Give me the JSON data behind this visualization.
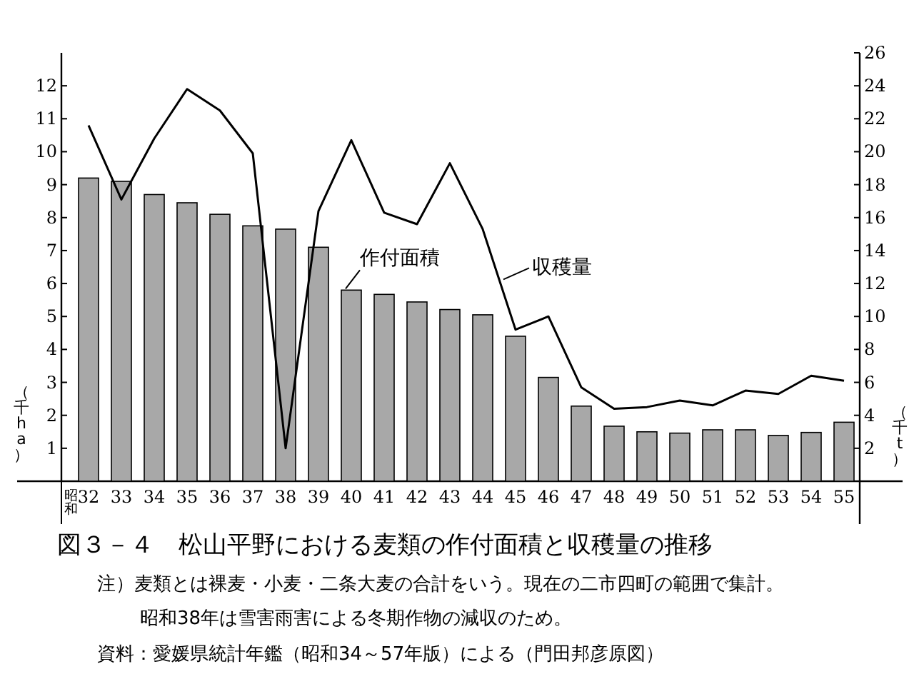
{
  "chart_data": {
    "type": "bar",
    "title": "図３－４　松山平野における麦類の作付面積と収穫量の推移",
    "xlabel": "昭和",
    "ylabel": "（千ha）",
    "y2label": "（千t）",
    "categories": [
      "32",
      "33",
      "34",
      "35",
      "36",
      "37",
      "38",
      "39",
      "40",
      "41",
      "42",
      "43",
      "44",
      "45",
      "46",
      "47",
      "48",
      "49",
      "50",
      "51",
      "52",
      "53",
      "54",
      "55"
    ],
    "series": [
      {
        "name": "作付面積",
        "color": "#a8a8a8",
        "values": [
          9.2,
          9.1,
          8.7,
          8.45,
          8.1,
          7.75,
          7.65,
          7.1,
          5.8,
          5.67,
          5.44,
          5.21,
          5.05,
          4.4,
          3.15,
          2.28,
          1.67,
          1.5,
          1.46,
          1.56,
          1.56,
          1.39,
          1.48,
          1.79
        ]
      },
      {
        "name": "収穫量",
        "type": "line",
        "axis": "y2",
        "color": "#000000",
        "values": [
          21.6,
          17.1,
          20.8,
          23.8,
          22.5,
          19.9,
          2.0,
          16.4,
          20.7,
          16.3,
          15.6,
          19.3,
          15.3,
          9.2,
          10.0,
          5.7,
          4.4,
          4.5,
          4.9,
          4.6,
          5.5,
          5.3,
          6.4,
          6.1
        ]
      }
    ],
    "ylim": [
      0,
      13
    ],
    "yticks": [
      1,
      2,
      3,
      4,
      5,
      6,
      7,
      8,
      9,
      10,
      11,
      12
    ],
    "y2lim": [
      0,
      26
    ],
    "y2ticks": [
      2,
      4,
      6,
      8,
      10,
      12,
      14,
      16,
      18,
      20,
      22,
      24,
      26
    ],
    "marker": "none",
    "line_style": "solid",
    "grid": false,
    "annotations": [
      "注）麦類とは裸麦・小麦・二条大麦の合計をいう。現在の二市四町の範囲で集計。",
      "昭和38年は雪害雨害による冬期作物の減収のため。",
      "資料：愛媛県統計年鑑（昭和34～57年版）による（門田邦彦原図）"
    ]
  }
}
